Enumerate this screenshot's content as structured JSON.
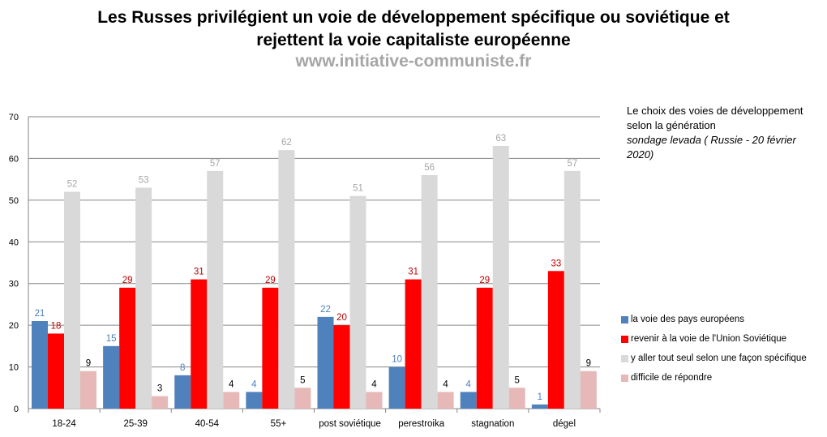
{
  "header": {
    "title_line1": "Les Russes privilégient un voie de développement spécifique ou soviétique et",
    "title_line2": "rejettent la voie capitaliste européenne",
    "subtitle": "www.initiative-communiste.fr"
  },
  "note": {
    "line1": "Le choix des voies de développement",
    "line2": "selon la génération",
    "line3": "sondage levada ( Russie - 20 février",
    "line4": "2020)"
  },
  "colors": {
    "series1": "#4f81bd",
    "series2": "#ff0000",
    "series3": "#d9d9d9",
    "series4": "#e6b9b8",
    "label1": "#4f81bd",
    "label2": "#c00000",
    "label3": "#a6a6a6",
    "label4": "#000000",
    "gridline": "#868686"
  },
  "chart_data": {
    "type": "bar",
    "title": "Les Russes privilégient un voie de développement spécifique ou soviétique et rejettent la voie capitaliste européenne",
    "categories": [
      "18-24",
      "25-39",
      "40-54",
      "55+",
      "post soviétique",
      "perestroika",
      "stagnation",
      "dégel"
    ],
    "series": [
      {
        "name": "la voie des pays européens",
        "values": [
          21,
          15,
          8,
          4,
          22,
          10,
          4,
          1
        ]
      },
      {
        "name": "revenir à la voie de l'Union Soviétique",
        "values": [
          18,
          29,
          31,
          29,
          20,
          31,
          29,
          33
        ]
      },
      {
        "name": "y aller tout seul selon une façon spécifique",
        "values": [
          52,
          53,
          57,
          62,
          51,
          56,
          63,
          57
        ]
      },
      {
        "name": "difficile de répondre",
        "values": [
          9,
          3,
          4,
          5,
          4,
          4,
          5,
          9
        ]
      }
    ],
    "ylim": [
      0,
      70
    ],
    "yticks": [
      0,
      10,
      20,
      30,
      40,
      50,
      60,
      70
    ],
    "grid": true,
    "legend_position": "right"
  }
}
